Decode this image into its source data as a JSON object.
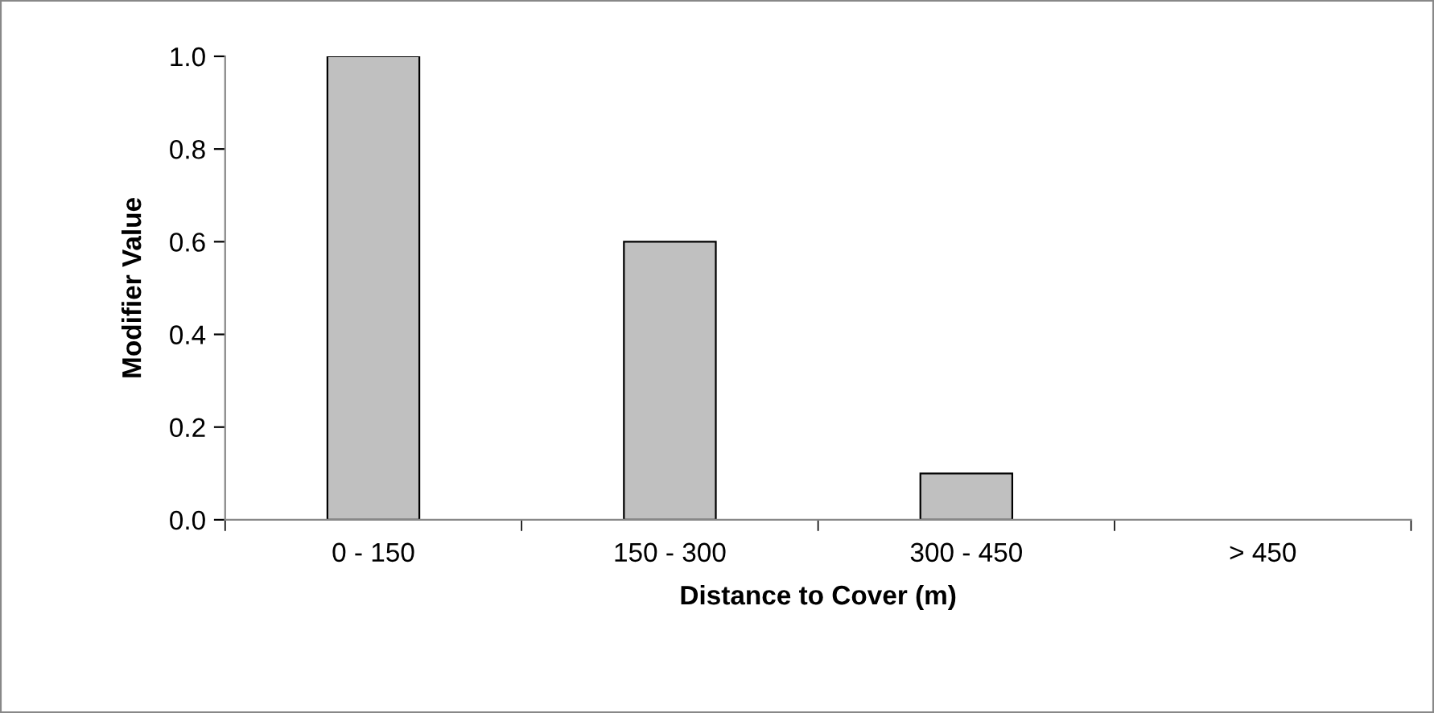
{
  "chart_data": {
    "type": "bar",
    "xlabel": "Distance to Cover (m)",
    "ylabel": "Modifier Value",
    "categories": [
      "0 - 150",
      "150 - 300",
      "300 - 450",
      "> 450"
    ],
    "values": [
      1.0,
      0.6,
      0.1,
      0.0
    ],
    "color": "#c0c0c0",
    "ylim": [
      0,
      1.0
    ],
    "yticks": [
      {
        "value": 0,
        "label": "0.0"
      },
      {
        "value": 0.2,
        "label": "0.2"
      },
      {
        "value": 0.4,
        "label": "0.4"
      },
      {
        "value": 0.6,
        "label": "0.6"
      },
      {
        "value": 0.8,
        "label": "0.8"
      },
      {
        "value": 1.0,
        "label": "1.0"
      }
    ],
    "grid": false,
    "legend": false
  }
}
